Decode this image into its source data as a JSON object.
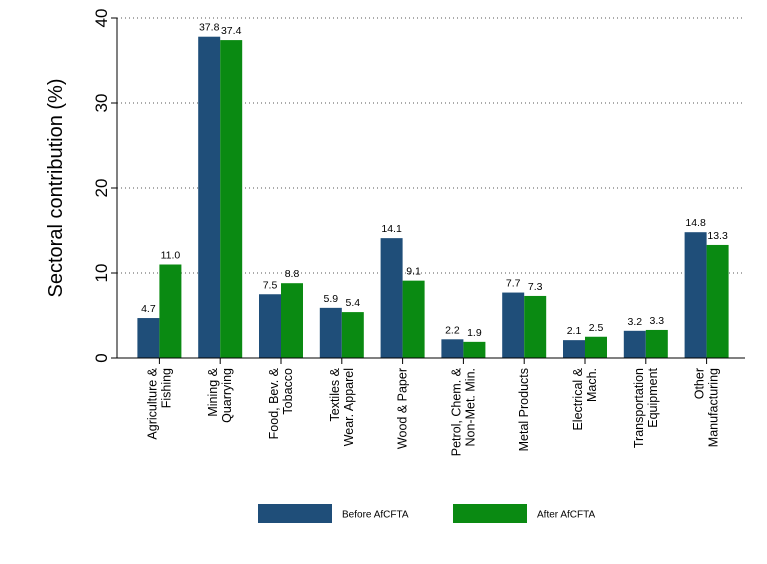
{
  "chart_data": {
    "type": "bar",
    "title": "",
    "xlabel": "",
    "ylabel": "Sectoral contribution (%)",
    "ylim": [
      0,
      40
    ],
    "yticks": [
      0,
      10,
      20,
      30,
      40
    ],
    "grid": true,
    "legend_position": "bottom",
    "categories": [
      [
        "Agriculture &",
        "Fishing"
      ],
      [
        "Mining &",
        "Quarrying"
      ],
      [
        "Food, Bev. &",
        "Tobacco"
      ],
      [
        "Textiles &",
        "Wear. Apparel"
      ],
      [
        "Wood & Paper"
      ],
      [
        "Petrol, Chem. &",
        "Non-Met. Min."
      ],
      [
        "Metal Products"
      ],
      [
        "Electrical &",
        "Mach."
      ],
      [
        "Transportation",
        "Equipment"
      ],
      [
        "Other",
        "Manufacturing"
      ]
    ],
    "series": [
      {
        "name": "Before AfCFTA",
        "color": "#1f4e79",
        "values": [
          4.7,
          37.8,
          7.5,
          5.9,
          14.1,
          2.2,
          7.7,
          2.1,
          3.2,
          14.8
        ]
      },
      {
        "name": "After AfCFTA",
        "color": "#0a8a12",
        "values": [
          11.0,
          37.4,
          8.8,
          5.4,
          9.1,
          1.9,
          7.3,
          2.5,
          3.3,
          13.3
        ]
      }
    ]
  }
}
